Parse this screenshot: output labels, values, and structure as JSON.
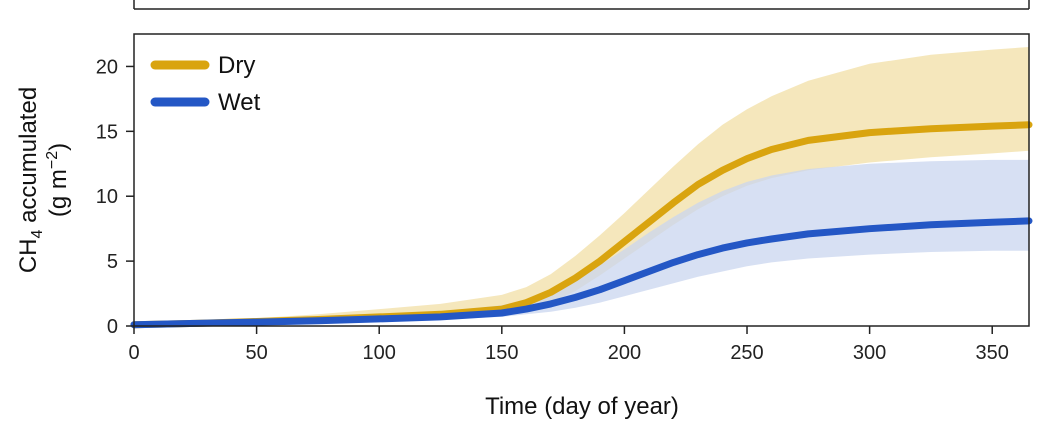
{
  "chart_data": {
    "type": "line",
    "xlabel": "Time (day of year)",
    "ylabel": {
      "line1_main": "CH",
      "line1_sub": "4",
      "line1_rest": " accumulated",
      "line2_pre": "(g m",
      "line2_sup": "−2",
      "line2_post": ")"
    },
    "xlim": [
      0,
      365
    ],
    "ylim": [
      0,
      22.5
    ],
    "xticks": [
      0,
      50,
      100,
      150,
      200,
      250,
      300,
      350
    ],
    "yticks": [
      0,
      5,
      10,
      15,
      20
    ],
    "grid": false,
    "legend_position": "top-left",
    "series": [
      {
        "name": "Dry",
        "color": "#D9A40F",
        "band_color": "#F3E3B0",
        "x": [
          0,
          25,
          50,
          75,
          100,
          125,
          150,
          160,
          170,
          180,
          190,
          200,
          210,
          220,
          230,
          240,
          250,
          260,
          275,
          300,
          325,
          350,
          365
        ],
        "y": [
          0.1,
          0.2,
          0.35,
          0.5,
          0.7,
          0.9,
          1.3,
          1.8,
          2.6,
          3.7,
          5.0,
          6.5,
          8.0,
          9.5,
          10.9,
          12.0,
          12.9,
          13.6,
          14.3,
          14.9,
          15.2,
          15.4,
          15.5
        ],
        "lower": [
          0.1,
          0.15,
          0.25,
          0.35,
          0.45,
          0.6,
          0.9,
          1.2,
          1.8,
          2.7,
          3.9,
          5.2,
          6.5,
          7.8,
          9.0,
          10.0,
          10.8,
          11.4,
          12.0,
          12.6,
          13.0,
          13.3,
          13.5
        ],
        "upper": [
          0.15,
          0.35,
          0.6,
          0.9,
          1.3,
          1.7,
          2.4,
          3.0,
          4.0,
          5.4,
          7.0,
          8.7,
          10.5,
          12.3,
          14.0,
          15.5,
          16.7,
          17.7,
          18.9,
          20.2,
          20.9,
          21.3,
          21.5
        ]
      },
      {
        "name": "Wet",
        "color": "#2457C5",
        "band_color": "#C9D5EF",
        "x": [
          0,
          25,
          50,
          75,
          100,
          125,
          150,
          160,
          170,
          180,
          190,
          200,
          210,
          220,
          230,
          240,
          250,
          260,
          275,
          300,
          325,
          350,
          365
        ],
        "y": [
          0.1,
          0.2,
          0.3,
          0.4,
          0.55,
          0.7,
          1.0,
          1.3,
          1.7,
          2.2,
          2.8,
          3.5,
          4.2,
          4.9,
          5.5,
          6.0,
          6.4,
          6.7,
          7.1,
          7.5,
          7.8,
          8.0,
          8.1
        ],
        "lower": [
          0.1,
          0.15,
          0.2,
          0.3,
          0.4,
          0.5,
          0.7,
          0.9,
          1.1,
          1.4,
          1.8,
          2.3,
          2.8,
          3.3,
          3.8,
          4.2,
          4.6,
          4.9,
          5.2,
          5.5,
          5.7,
          5.8,
          5.8
        ],
        "upper": [
          0.15,
          0.3,
          0.45,
          0.6,
          0.8,
          1.1,
          1.6,
          2.0,
          2.7,
          3.6,
          4.7,
          5.9,
          7.2,
          8.4,
          9.5,
          10.4,
          11.1,
          11.6,
          12.1,
          12.5,
          12.7,
          12.8,
          12.8
        ]
      }
    ]
  }
}
